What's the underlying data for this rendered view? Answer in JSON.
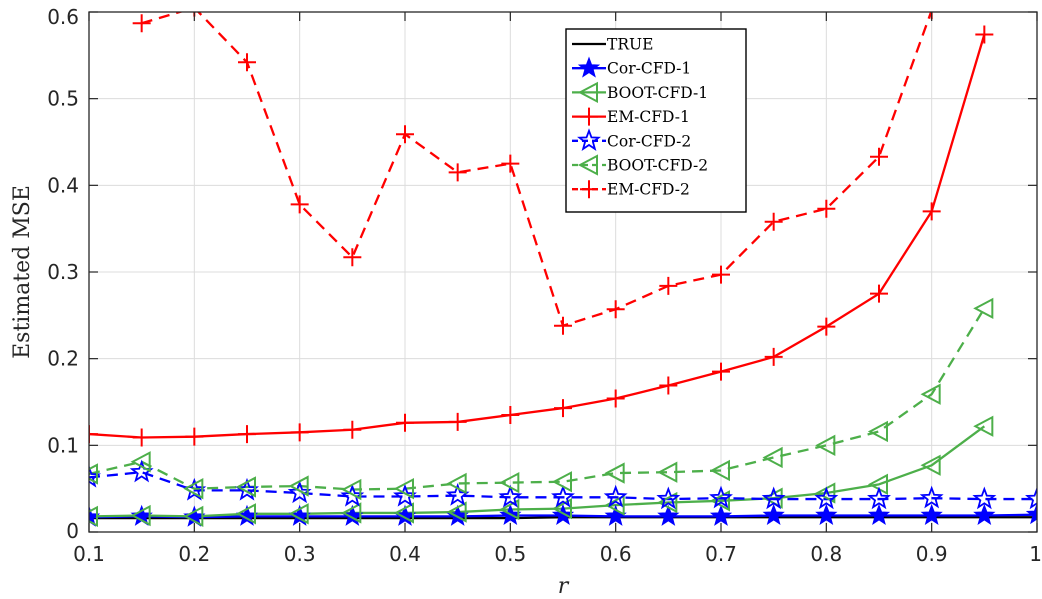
{
  "chart_data": {
    "type": "line",
    "title": "",
    "xlabel": "r",
    "ylabel": "Estimated MSE",
    "xlim": [
      0.1,
      1
    ],
    "ylim": [
      0,
      0.6
    ],
    "xticks": [
      0.1,
      0.2,
      0.3,
      0.4,
      0.5,
      0.6,
      0.7,
      0.8,
      0.9,
      1
    ],
    "xtick_labels": [
      "0.1",
      "0.2",
      "0.3",
      "0.4",
      "0.5",
      "0.6",
      "0.7",
      "0.8",
      "0.9",
      "1"
    ],
    "yticks": [
      0,
      0.1,
      0.2,
      0.3,
      0.4,
      0.5,
      0.6
    ],
    "ytick_labels": [
      "0",
      "0.1",
      "0.2",
      "0.3",
      "0.4",
      "0.5",
      "0.6"
    ],
    "grid": true,
    "legend_position": "top-right",
    "x": [
      0.1,
      0.15,
      0.2,
      0.25,
      0.3,
      0.35,
      0.4,
      0.45,
      0.5,
      0.55,
      0.6,
      0.65,
      0.7,
      0.75,
      0.8,
      0.85,
      0.9,
      0.95,
      1.0
    ],
    "series": [
      {
        "name": "TRUE",
        "color": "#000000",
        "line": "solid",
        "marker": "none",
        "values": [
          0.016,
          0.016,
          0.016,
          0.016,
          0.016,
          0.016,
          0.016,
          0.016,
          0.016,
          0.017,
          0.017,
          0.017,
          0.017,
          0.017,
          0.017,
          0.017,
          0.017,
          0.017,
          0.017
        ]
      },
      {
        "name": "Cor-CFD-1",
        "color": "#0000ff",
        "line": "solid",
        "marker": "star-filled",
        "values": [
          0.017,
          0.018,
          0.017,
          0.018,
          0.018,
          0.018,
          0.018,
          0.018,
          0.019,
          0.019,
          0.018,
          0.018,
          0.018,
          0.019,
          0.019,
          0.019,
          0.019,
          0.019,
          0.02
        ]
      },
      {
        "name": "BOOT-CFD-1",
        "color": "#4daf4a",
        "line": "solid",
        "marker": "triangle-left",
        "values": [
          0.018,
          0.019,
          0.018,
          0.021,
          0.021,
          0.022,
          0.022,
          0.023,
          0.026,
          0.027,
          0.031,
          0.034,
          0.036,
          0.039,
          0.045,
          0.055,
          0.077,
          0.122,
          null
        ]
      },
      {
        "name": "EM-CFD-1",
        "color": "#ff0000",
        "line": "solid",
        "marker": "plus",
        "values": [
          0.113,
          0.109,
          0.11,
          0.113,
          0.115,
          0.118,
          0.126,
          0.127,
          0.135,
          0.143,
          0.154,
          0.169,
          0.185,
          0.202,
          0.237,
          0.275,
          0.37,
          0.574,
          null
        ]
      },
      {
        "name": "Cor-CFD-2",
        "color": "#0000ff",
        "line": "dashed",
        "marker": "star-open",
        "values": [
          0.063,
          0.069,
          0.048,
          0.048,
          0.045,
          0.041,
          0.041,
          0.042,
          0.04,
          0.04,
          0.04,
          0.038,
          0.039,
          0.038,
          0.038,
          0.038,
          0.039,
          0.038,
          0.038
        ]
      },
      {
        "name": "BOOT-CFD-2",
        "color": "#4daf4a",
        "line": "dashed",
        "marker": "triangle-left",
        "values": [
          0.067,
          0.081,
          0.05,
          0.052,
          0.053,
          0.049,
          0.05,
          0.056,
          0.057,
          0.058,
          0.068,
          0.069,
          0.071,
          0.086,
          0.1,
          0.116,
          0.159,
          0.258,
          null
        ]
      },
      {
        "name": "EM-CFD-2",
        "color": "#ff0000",
        "line": "dashed",
        "marker": "plus",
        "values": [
          null,
          0.587,
          0.605,
          0.542,
          0.378,
          0.317,
          0.459,
          0.415,
          0.425,
          0.238,
          0.257,
          0.284,
          0.297,
          0.358,
          0.373,
          0.433,
          0.602,
          null,
          null
        ]
      }
    ]
  }
}
